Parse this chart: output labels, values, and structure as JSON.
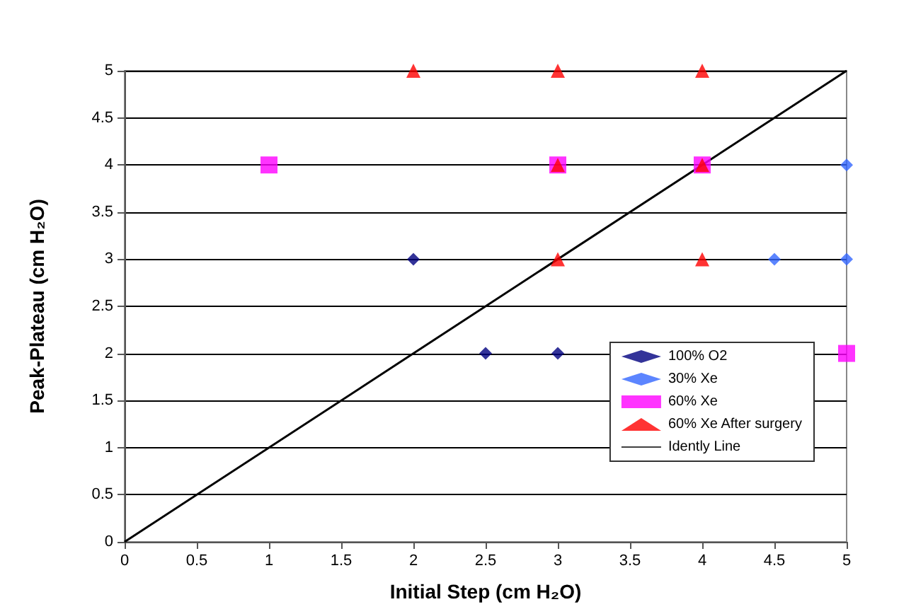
{
  "chart_data": {
    "type": "scatter",
    "xlabel": "Initial Step (cm H₂O)",
    "ylabel": "Peak-Plateau (cm H₂O)",
    "xlim": [
      0,
      5
    ],
    "xticks": [
      0,
      0.5,
      1,
      1.5,
      2,
      2.5,
      3,
      3.5,
      4,
      4.5,
      5
    ],
    "ylim": [
      0,
      5
    ],
    "yticks": [
      0,
      0.5,
      1,
      1.5,
      2,
      2.5,
      3,
      3.5,
      4,
      4.5,
      5
    ],
    "grid": "y",
    "legend": "bottom right",
    "series": [
      {
        "name": "100% O2",
        "color": "#000080",
        "marker": "diamond",
        "x": [
          2,
          2.5,
          3
        ],
        "values": [
          3,
          2,
          2
        ]
      },
      {
        "name": "30% Xe",
        "color": "#3366ff",
        "marker": "diamond",
        "x": [
          4.5,
          5,
          5
        ],
        "values": [
          3,
          3,
          4
        ]
      },
      {
        "name": "60% Xe",
        "color": "#ff00ff",
        "marker": "square",
        "x": [
          1,
          3,
          4,
          5
        ],
        "values": [
          4,
          4,
          4,
          2
        ]
      },
      {
        "name": "60% Xe After surgery",
        "color": "#ff0000",
        "marker": "triangle",
        "x": [
          2,
          3,
          4,
          3,
          4,
          3,
          4
        ],
        "values": [
          5,
          5,
          5,
          4,
          4,
          3,
          3
        ]
      },
      {
        "name": "Idently Line",
        "type": "line",
        "color": "#000000",
        "marker": "none",
        "line_style": "solid",
        "x": [
          0,
          5
        ],
        "values": [
          0,
          5
        ]
      }
    ]
  }
}
